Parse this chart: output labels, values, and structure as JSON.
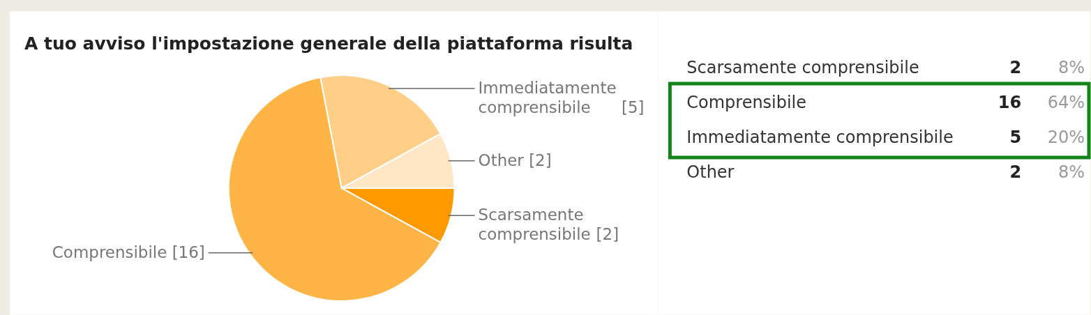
{
  "chart_data": [
    {
      "type": "pie",
      "title": "A tuo avviso l'impostazione generale della piattaforma risulta",
      "categories": [
        "Scarsamente comprensibile",
        "Comprensibile",
        "Immediatamente comprensibile",
        "Other"
      ],
      "values": [
        2,
        16,
        5,
        2
      ],
      "colors": [
        "#ff9900",
        "#ffb446",
        "#ffcf88",
        "#ffe7c6"
      ],
      "value_labels": [
        "[2]",
        "[16]",
        "[5]",
        "[2]"
      ]
    },
    {
      "type": "other",
      "categories": [
        "Scarsamente comprensibile",
        "Comprensibile",
        "Immediatamente comprensibile",
        "Other"
      ],
      "series": [
        {
          "values": [
            2,
            16,
            5,
            2
          ]
        },
        {
          "values": [
            8,
            64,
            20,
            8
          ],
          "value_labels": [
            "8%",
            "64%",
            "20%",
            "8%"
          ]
        }
      ],
      "data_labels": true
    }
  ]
}
